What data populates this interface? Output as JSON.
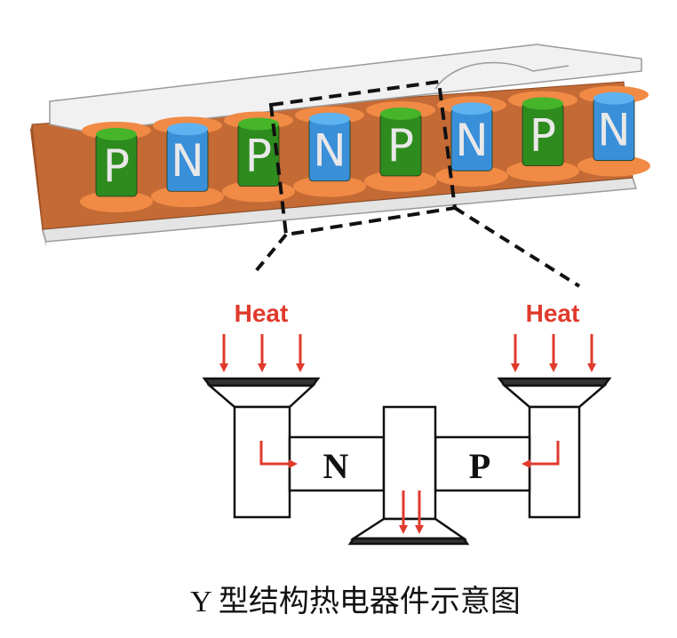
{
  "module": {
    "legs": [
      "P",
      "N",
      "P",
      "N",
      "P",
      "N",
      "P",
      "N"
    ],
    "colors": {
      "p_leg": "#2e8b1e",
      "n_leg": "#3a8fd9",
      "electrode": "#c46a35",
      "solder": "#f08a45",
      "plate": "#efefef"
    }
  },
  "detail": {
    "heat_left": "Heat",
    "heat_right": "Heat",
    "n_label": "N",
    "p_label": "P",
    "arrow_color": "#e03a2c"
  },
  "caption": "Y 型结构热电器件示意图"
}
